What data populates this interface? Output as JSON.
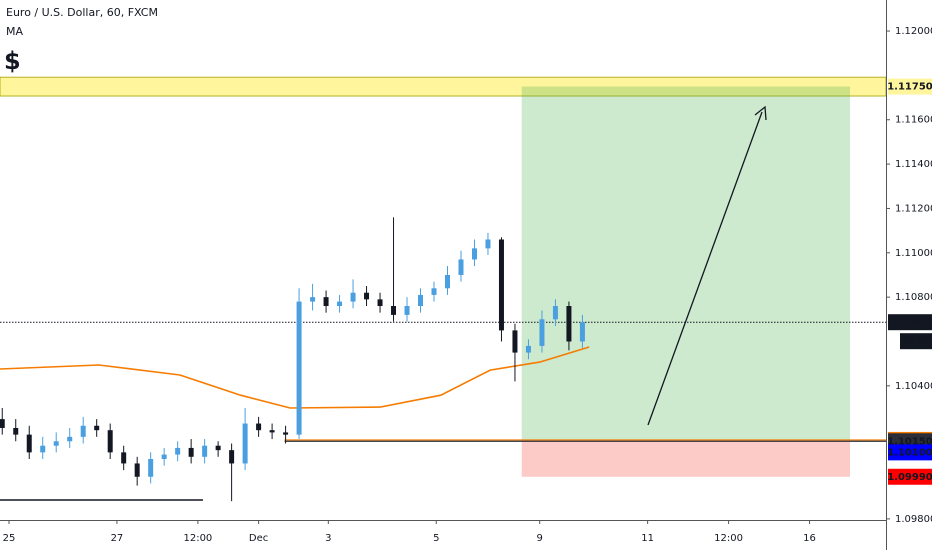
{
  "chart_data": {
    "type": "candlestick",
    "title": "Euro / U.S. Dollar, 60, FXCM",
    "indicator": "MA",
    "symbol": "$",
    "countdown": "30:04",
    "xlim": [
      -4,
      390
    ],
    "ylim": [
      1.09795,
      1.1214
    ],
    "xticks": [
      {
        "value": 0,
        "label": "25"
      },
      {
        "value": 48,
        "label": "27"
      },
      {
        "value": 84,
        "label": "12:00"
      },
      {
        "value": 111,
        "label": "Dec"
      },
      {
        "value": 142,
        "label": "3"
      },
      {
        "value": 190,
        "label": "5"
      },
      {
        "value": 236,
        "label": "9"
      },
      {
        "value": 284,
        "label": "11"
      },
      {
        "value": 320,
        "label": "12:00"
      },
      {
        "value": 356,
        "label": "16"
      }
    ],
    "yticks": [
      {
        "value": 1.12,
        "label": "1.12000"
      },
      {
        "value": 1.116,
        "label": "1.11600"
      },
      {
        "value": 1.114,
        "label": "1.11400"
      },
      {
        "value": 1.112,
        "label": "1.11200"
      },
      {
        "value": 1.11,
        "label": "1.11000"
      },
      {
        "value": 1.108,
        "label": "1.10800"
      },
      {
        "value": 1.104,
        "label": "1.10400"
      },
      {
        "value": 1.098,
        "label": "1.09800"
      }
    ],
    "up_color": "#4a9fe0",
    "down_color": "#131722",
    "x": [
      -3,
      3,
      9,
      15,
      21,
      27,
      33,
      39,
      45,
      51,
      57,
      63,
      69,
      75,
      81,
      87,
      93,
      99,
      105,
      111,
      117,
      123,
      129,
      135,
      141,
      147,
      153,
      159,
      165,
      171,
      177,
      183,
      189,
      195,
      201,
      207,
      213,
      219,
      225,
      231,
      237,
      243,
      249,
      255
    ],
    "open": [
      1.1025,
      1.1021,
      1.1018,
      1.101,
      1.1013,
      1.1015,
      1.1017,
      1.1022,
      1.102,
      1.101,
      1.1005,
      1.0999,
      1.1007,
      1.1009,
      1.1012,
      1.1008,
      1.1013,
      1.1011,
      1.1005,
      1.1023,
      1.102,
      1.1019,
      1.1018,
      1.1078,
      1.108,
      1.1076,
      1.1078,
      1.1082,
      1.1079,
      1.1076,
      1.1072,
      1.1076,
      1.1081,
      1.1084,
      1.109,
      1.1097,
      1.1102,
      1.1106,
      1.1065,
      1.1055,
      1.1058,
      1.107,
      1.1076,
      1.106
    ],
    "high": [
      1.103,
      1.1025,
      1.1022,
      1.1017,
      1.1019,
      1.1021,
      1.1026,
      1.1025,
      1.1023,
      1.1013,
      1.1008,
      1.101,
      1.1012,
      1.1015,
      1.1016,
      1.1016,
      1.1015,
      1.1014,
      1.103,
      1.1026,
      1.1023,
      1.1022,
      1.1084,
      1.1086,
      1.1083,
      1.1081,
      1.1088,
      1.1085,
      1.1082,
      1.1116,
      1.108,
      1.1084,
      1.1087,
      1.1094,
      1.1101,
      1.1106,
      1.1109,
      1.1107,
      1.1068,
      1.1061,
      1.1074,
      1.1079,
      1.1078,
      1.1072
    ],
    "low": [
      1.1018,
      1.1015,
      1.1007,
      1.1007,
      1.101,
      1.1012,
      1.1014,
      1.1017,
      1.1007,
      1.1002,
      1.0995,
      1.0996,
      1.1004,
      1.1006,
      1.1005,
      1.1005,
      1.1008,
      1.0988,
      1.1002,
      1.1017,
      1.1016,
      1.1014,
      1.1016,
      1.1074,
      1.1073,
      1.1073,
      1.1075,
      1.1076,
      1.1073,
      1.1069,
      1.1069,
      1.1073,
      1.1078,
      1.1081,
      1.1087,
      1.1094,
      1.1099,
      1.106,
      1.1042,
      1.1052,
      1.1055,
      1.1067,
      1.1056,
      1.1057
    ],
    "close": [
      1.1021,
      1.1018,
      1.101,
      1.1013,
      1.1015,
      1.1017,
      1.1022,
      1.102,
      1.101,
      1.1005,
      1.0999,
      1.1007,
      1.1009,
      1.1012,
      1.1008,
      1.1013,
      1.1011,
      1.1005,
      1.1023,
      1.102,
      1.1019,
      1.1018,
      1.1078,
      1.108,
      1.1076,
      1.1078,
      1.1082,
      1.1079,
      1.1076,
      1.1072,
      1.1076,
      1.1081,
      1.1084,
      1.109,
      1.1097,
      1.1102,
      1.1106,
      1.1065,
      1.1055,
      1.1058,
      1.107,
      1.1076,
      1.106,
      1.10687
    ],
    "ma": {
      "color": "#f57c00",
      "x": [
        -4,
        40,
        76,
        103,
        125,
        165,
        192,
        214,
        236,
        258
      ],
      "values": [
        1.10476,
        1.10494,
        1.10449,
        1.10358,
        1.103,
        1.10304,
        1.10358,
        1.10471,
        1.10507,
        1.10575
      ]
    },
    "zone": {
      "top": 1.11792,
      "bottom": 1.11707,
      "label": "1.11750",
      "color": "#fff59d"
    },
    "position": {
      "x": [
        228,
        374
      ],
      "target": 1.1175,
      "entry": 1.10156,
      "stop": 1.0999
    },
    "levels": [
      {
        "value": 1.10687,
        "label": "1.10687",
        "color": "#131722",
        "style": "dotted"
      },
      {
        "value": 1.10156,
        "label": "1.10156",
        "color": "#f57c00",
        "style": "solid"
      },
      {
        "value": 1.1015,
        "label": "1.10150",
        "color": "#2a2e39",
        "style": "solid"
      },
      {
        "value": 1.101,
        "label": "1.10100",
        "color": "#0000ff",
        "style": "none"
      },
      {
        "value": 1.0999,
        "label": "1.09990",
        "color": "#ff0000",
        "style": "none"
      }
    ]
  }
}
